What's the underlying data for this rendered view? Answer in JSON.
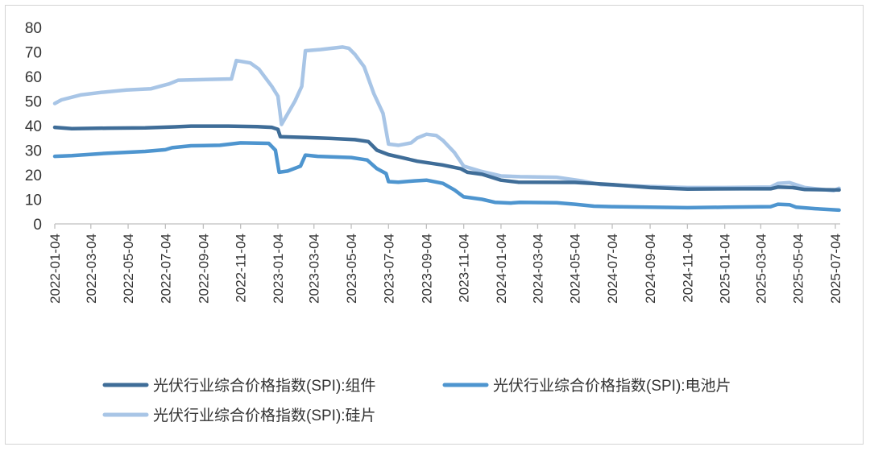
{
  "chart_data": {
    "type": "line",
    "title": "",
    "xlabel": "",
    "ylabel": "",
    "ylim": [
      0,
      80
    ],
    "yticks": [
      0,
      10,
      20,
      30,
      40,
      50,
      60,
      70,
      80
    ],
    "x_tick_labels": [
      "2022-01-04",
      "2022-03-04",
      "2022-05-04",
      "2022-07-04",
      "2022-09-04",
      "2022-11-04",
      "2023-01-04",
      "2023-03-04",
      "2023-05-04",
      "2023-07-04",
      "2023-09-04",
      "2023-11-04",
      "2024-01-04",
      "2024-03-04",
      "2024-05-04",
      "2024-07-04",
      "2024-09-04",
      "2024-11-04",
      "2025-01-04",
      "2025-03-04",
      "2025-05-04",
      "2025-07-04"
    ],
    "grid": false,
    "legend_position": "bottom",
    "series": [
      {
        "name": "光伏行业综合价格指数(SPI):组件",
        "color": "#3f6d98",
        "points": [
          [
            "2022-01-04",
            39.3
          ],
          [
            "2022-02-01",
            38.8
          ],
          [
            "2022-04-01",
            39.0
          ],
          [
            "2022-06-01",
            39.1
          ],
          [
            "2022-07-20",
            39.5
          ],
          [
            "2022-08-15",
            39.8
          ],
          [
            "2022-10-15",
            39.8
          ],
          [
            "2022-12-01",
            39.6
          ],
          [
            "2022-12-25",
            39.3
          ],
          [
            "2023-01-04",
            38.5
          ],
          [
            "2023-01-08",
            35.5
          ],
          [
            "2023-02-15",
            35.2
          ],
          [
            "2023-04-01",
            34.8
          ],
          [
            "2023-05-10",
            34.3
          ],
          [
            "2023-06-01",
            33.5
          ],
          [
            "2023-06-15",
            30.0
          ],
          [
            "2023-07-04",
            28.2
          ],
          [
            "2023-07-25",
            27.0
          ],
          [
            "2023-08-20",
            25.5
          ],
          [
            "2023-09-30",
            24.0
          ],
          [
            "2023-10-30",
            22.5
          ],
          [
            "2023-11-10",
            21.0
          ],
          [
            "2023-12-04",
            20.2
          ],
          [
            "2024-01-04",
            17.8
          ],
          [
            "2024-02-01",
            17.0
          ],
          [
            "2024-05-04",
            16.9
          ],
          [
            "2024-07-04",
            16.0
          ],
          [
            "2024-09-04",
            14.8
          ],
          [
            "2024-11-04",
            14.2
          ],
          [
            "2025-02-01",
            14.3
          ],
          [
            "2025-03-20",
            14.3
          ],
          [
            "2025-04-01",
            15.0
          ],
          [
            "2025-04-25",
            14.8
          ],
          [
            "2025-05-15",
            14.0
          ],
          [
            "2025-07-10",
            13.8
          ]
        ]
      },
      {
        "name": "光伏行业综合价格指数(SPI):电池片",
        "color": "#4e95cf",
        "points": [
          [
            "2022-01-04",
            27.5
          ],
          [
            "2022-02-01",
            27.8
          ],
          [
            "2022-04-01",
            28.8
          ],
          [
            "2022-06-01",
            29.5
          ],
          [
            "2022-07-04",
            30.2
          ],
          [
            "2022-07-15",
            31.0
          ],
          [
            "2022-08-15",
            31.8
          ],
          [
            "2022-10-01",
            32.0
          ],
          [
            "2022-11-04",
            33.0
          ],
          [
            "2022-12-20",
            32.8
          ],
          [
            "2022-12-31",
            30.0
          ],
          [
            "2023-01-06",
            21.0
          ],
          [
            "2023-01-20",
            21.5
          ],
          [
            "2023-02-10",
            23.5
          ],
          [
            "2023-02-18",
            28.0
          ],
          [
            "2023-03-10",
            27.5
          ],
          [
            "2023-05-04",
            27.0
          ],
          [
            "2023-05-30",
            26.0
          ],
          [
            "2023-06-15",
            22.5
          ],
          [
            "2023-06-30",
            20.5
          ],
          [
            "2023-07-04",
            17.2
          ],
          [
            "2023-07-20",
            17.0
          ],
          [
            "2023-08-15",
            17.5
          ],
          [
            "2023-09-04",
            17.8
          ],
          [
            "2023-10-01",
            16.5
          ],
          [
            "2023-10-20",
            13.8
          ],
          [
            "2023-11-04",
            11.0
          ],
          [
            "2023-12-04",
            10.0
          ],
          [
            "2023-12-25",
            8.8
          ],
          [
            "2024-01-20",
            8.5
          ],
          [
            "2024-02-04",
            8.8
          ],
          [
            "2024-04-04",
            8.6
          ],
          [
            "2024-05-04",
            8.0
          ],
          [
            "2024-06-04",
            7.2
          ],
          [
            "2024-07-04",
            7.0
          ],
          [
            "2024-09-04",
            6.8
          ],
          [
            "2024-11-04",
            6.6
          ],
          [
            "2025-01-04",
            6.8
          ],
          [
            "2025-03-20",
            7.0
          ],
          [
            "2025-04-01",
            8.0
          ],
          [
            "2025-04-20",
            7.8
          ],
          [
            "2025-05-01",
            6.8
          ],
          [
            "2025-06-01",
            6.2
          ],
          [
            "2025-07-10",
            5.6
          ]
        ]
      },
      {
        "name": "光伏行业综合价格指数(SPI):硅片",
        "color": "#a8c5e6",
        "points": [
          [
            "2022-01-04",
            49.0
          ],
          [
            "2022-01-15",
            50.5
          ],
          [
            "2022-02-15",
            52.5
          ],
          [
            "2022-03-20",
            53.5
          ],
          [
            "2022-05-01",
            54.5
          ],
          [
            "2022-06-10",
            55.0
          ],
          [
            "2022-06-25",
            56.0
          ],
          [
            "2022-07-10",
            57.0
          ],
          [
            "2022-07-25",
            58.5
          ],
          [
            "2022-10-20",
            59.0
          ],
          [
            "2022-10-28",
            66.5
          ],
          [
            "2022-11-20",
            65.5
          ],
          [
            "2022-12-04",
            63.0
          ],
          [
            "2022-12-25",
            56.0
          ],
          [
            "2023-01-04",
            52.0
          ],
          [
            "2023-01-10",
            40.5
          ],
          [
            "2023-02-01",
            50.0
          ],
          [
            "2023-02-12",
            56.0
          ],
          [
            "2023-02-18",
            70.5
          ],
          [
            "2023-03-15",
            71.0
          ],
          [
            "2023-04-20",
            72.0
          ],
          [
            "2023-04-30",
            71.5
          ],
          [
            "2023-05-10",
            69.0
          ],
          [
            "2023-05-25",
            64.0
          ],
          [
            "2023-06-10",
            53.0
          ],
          [
            "2023-06-25",
            45.0
          ],
          [
            "2023-07-04",
            32.5
          ],
          [
            "2023-07-20",
            32.0
          ],
          [
            "2023-08-10",
            33.0
          ],
          [
            "2023-08-20",
            35.0
          ],
          [
            "2023-09-04",
            36.5
          ],
          [
            "2023-09-20",
            36.0
          ],
          [
            "2023-10-01",
            34.0
          ],
          [
            "2023-10-20",
            29.0
          ],
          [
            "2023-11-04",
            23.5
          ],
          [
            "2023-12-01",
            21.5
          ],
          [
            "2024-01-04",
            19.5
          ],
          [
            "2024-02-04",
            19.2
          ],
          [
            "2024-04-04",
            19.0
          ],
          [
            "2024-05-15",
            17.5
          ],
          [
            "2024-06-15",
            16.0
          ],
          [
            "2024-09-04",
            15.2
          ],
          [
            "2024-11-04",
            14.8
          ],
          [
            "2025-01-04",
            14.8
          ],
          [
            "2025-03-20",
            15.0
          ],
          [
            "2025-04-01",
            16.5
          ],
          [
            "2025-04-20",
            16.8
          ],
          [
            "2025-05-15",
            14.8
          ],
          [
            "2025-07-01",
            13.5
          ],
          [
            "2025-07-10",
            14.5
          ]
        ]
      }
    ]
  }
}
